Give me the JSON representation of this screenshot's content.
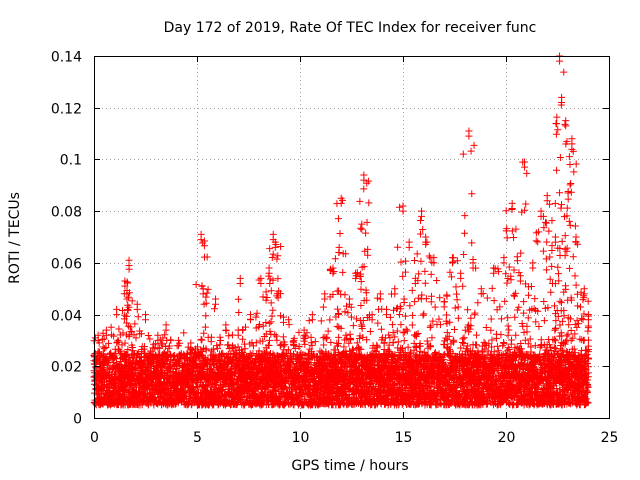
{
  "chart_data": {
    "type": "scatter",
    "title": "Day 172 of 2019, Rate Of TEC Index for receiver func",
    "xlabel": "GPS time / hours",
    "ylabel": "ROTI / TECUs",
    "xlim": [
      0,
      25
    ],
    "ylim": [
      0,
      0.14
    ],
    "x_ticks": [
      0,
      5,
      10,
      15,
      20,
      25
    ],
    "x_tick_labels": [
      "0",
      "5",
      "10",
      "15",
      "20",
      "25"
    ],
    "y_ticks": [
      0,
      0.02,
      0.04,
      0.06,
      0.08,
      0.1,
      0.12,
      0.14
    ],
    "y_tick_labels": [
      "0",
      "0.02",
      "0.04",
      "0.06",
      "0.08",
      "0.1",
      "0.12",
      "0.14"
    ],
    "grid": true,
    "marker": "plus",
    "series": [
      {
        "name": "ROTI",
        "color": "#ff0000",
        "background_band": [
          0.005,
          0.025
        ],
        "peaks": [
          {
            "x": 0.2,
            "y": 0.032
          },
          {
            "x": 0.6,
            "y": 0.034
          },
          {
            "x": 1.1,
            "y": 0.042
          },
          {
            "x": 1.5,
            "y": 0.053
          },
          {
            "x": 1.6,
            "y": 0.048
          },
          {
            "x": 1.7,
            "y": 0.061
          },
          {
            "x": 2.1,
            "y": 0.044
          },
          {
            "x": 2.5,
            "y": 0.04
          },
          {
            "x": 3.1,
            "y": 0.032
          },
          {
            "x": 3.5,
            "y": 0.036
          },
          {
            "x": 4.1,
            "y": 0.03
          },
          {
            "x": 4.7,
            "y": 0.029
          },
          {
            "x": 5.2,
            "y": 0.071
          },
          {
            "x": 5.3,
            "y": 0.05
          },
          {
            "x": 5.9,
            "y": 0.046
          },
          {
            "x": 6.4,
            "y": 0.036
          },
          {
            "x": 7.0,
            "y": 0.034
          },
          {
            "x": 7.1,
            "y": 0.054
          },
          {
            "x": 7.6,
            "y": 0.04
          },
          {
            "x": 8.1,
            "y": 0.054
          },
          {
            "x": 8.5,
            "y": 0.058
          },
          {
            "x": 8.7,
            "y": 0.071
          },
          {
            "x": 8.8,
            "y": 0.068
          },
          {
            "x": 9.2,
            "y": 0.039
          },
          {
            "x": 9.7,
            "y": 0.03
          },
          {
            "x": 10.2,
            "y": 0.034
          },
          {
            "x": 10.6,
            "y": 0.04
          },
          {
            "x": 11.2,
            "y": 0.048
          },
          {
            "x": 11.6,
            "y": 0.058
          },
          {
            "x": 11.9,
            "y": 0.066
          },
          {
            "x": 12.0,
            "y": 0.085
          },
          {
            "x": 12.4,
            "y": 0.046
          },
          {
            "x": 12.7,
            "y": 0.056
          },
          {
            "x": 13.0,
            "y": 0.075
          },
          {
            "x": 13.1,
            "y": 0.094
          },
          {
            "x": 13.5,
            "y": 0.04
          },
          {
            "x": 13.9,
            "y": 0.048
          },
          {
            "x": 14.2,
            "y": 0.042
          },
          {
            "x": 14.6,
            "y": 0.05
          },
          {
            "x": 15.0,
            "y": 0.082
          },
          {
            "x": 15.3,
            "y": 0.068
          },
          {
            "x": 15.6,
            "y": 0.054
          },
          {
            "x": 15.9,
            "y": 0.08
          },
          {
            "x": 16.1,
            "y": 0.07
          },
          {
            "x": 16.5,
            "y": 0.062
          },
          {
            "x": 17.0,
            "y": 0.045
          },
          {
            "x": 17.4,
            "y": 0.062
          },
          {
            "x": 17.8,
            "y": 0.056
          },
          {
            "x": 18.2,
            "y": 0.111
          },
          {
            "x": 18.4,
            "y": 0.06
          },
          {
            "x": 18.8,
            "y": 0.05
          },
          {
            "x": 19.4,
            "y": 0.058
          },
          {
            "x": 19.9,
            "y": 0.062
          },
          {
            "x": 20.3,
            "y": 0.083
          },
          {
            "x": 20.7,
            "y": 0.055
          },
          {
            "x": 20.9,
            "y": 0.099
          },
          {
            "x": 21.3,
            "y": 0.06
          },
          {
            "x": 21.7,
            "y": 0.08
          },
          {
            "x": 22.0,
            "y": 0.086
          },
          {
            "x": 22.4,
            "y": 0.07
          },
          {
            "x": 22.6,
            "y": 0.14
          },
          {
            "x": 22.7,
            "y": 0.124
          },
          {
            "x": 22.9,
            "y": 0.115
          },
          {
            "x": 23.2,
            "y": 0.108
          },
          {
            "x": 23.4,
            "y": 0.07
          },
          {
            "x": 23.8,
            "y": 0.05
          },
          {
            "x": 24.0,
            "y": 0.04
          }
        ]
      }
    ]
  }
}
